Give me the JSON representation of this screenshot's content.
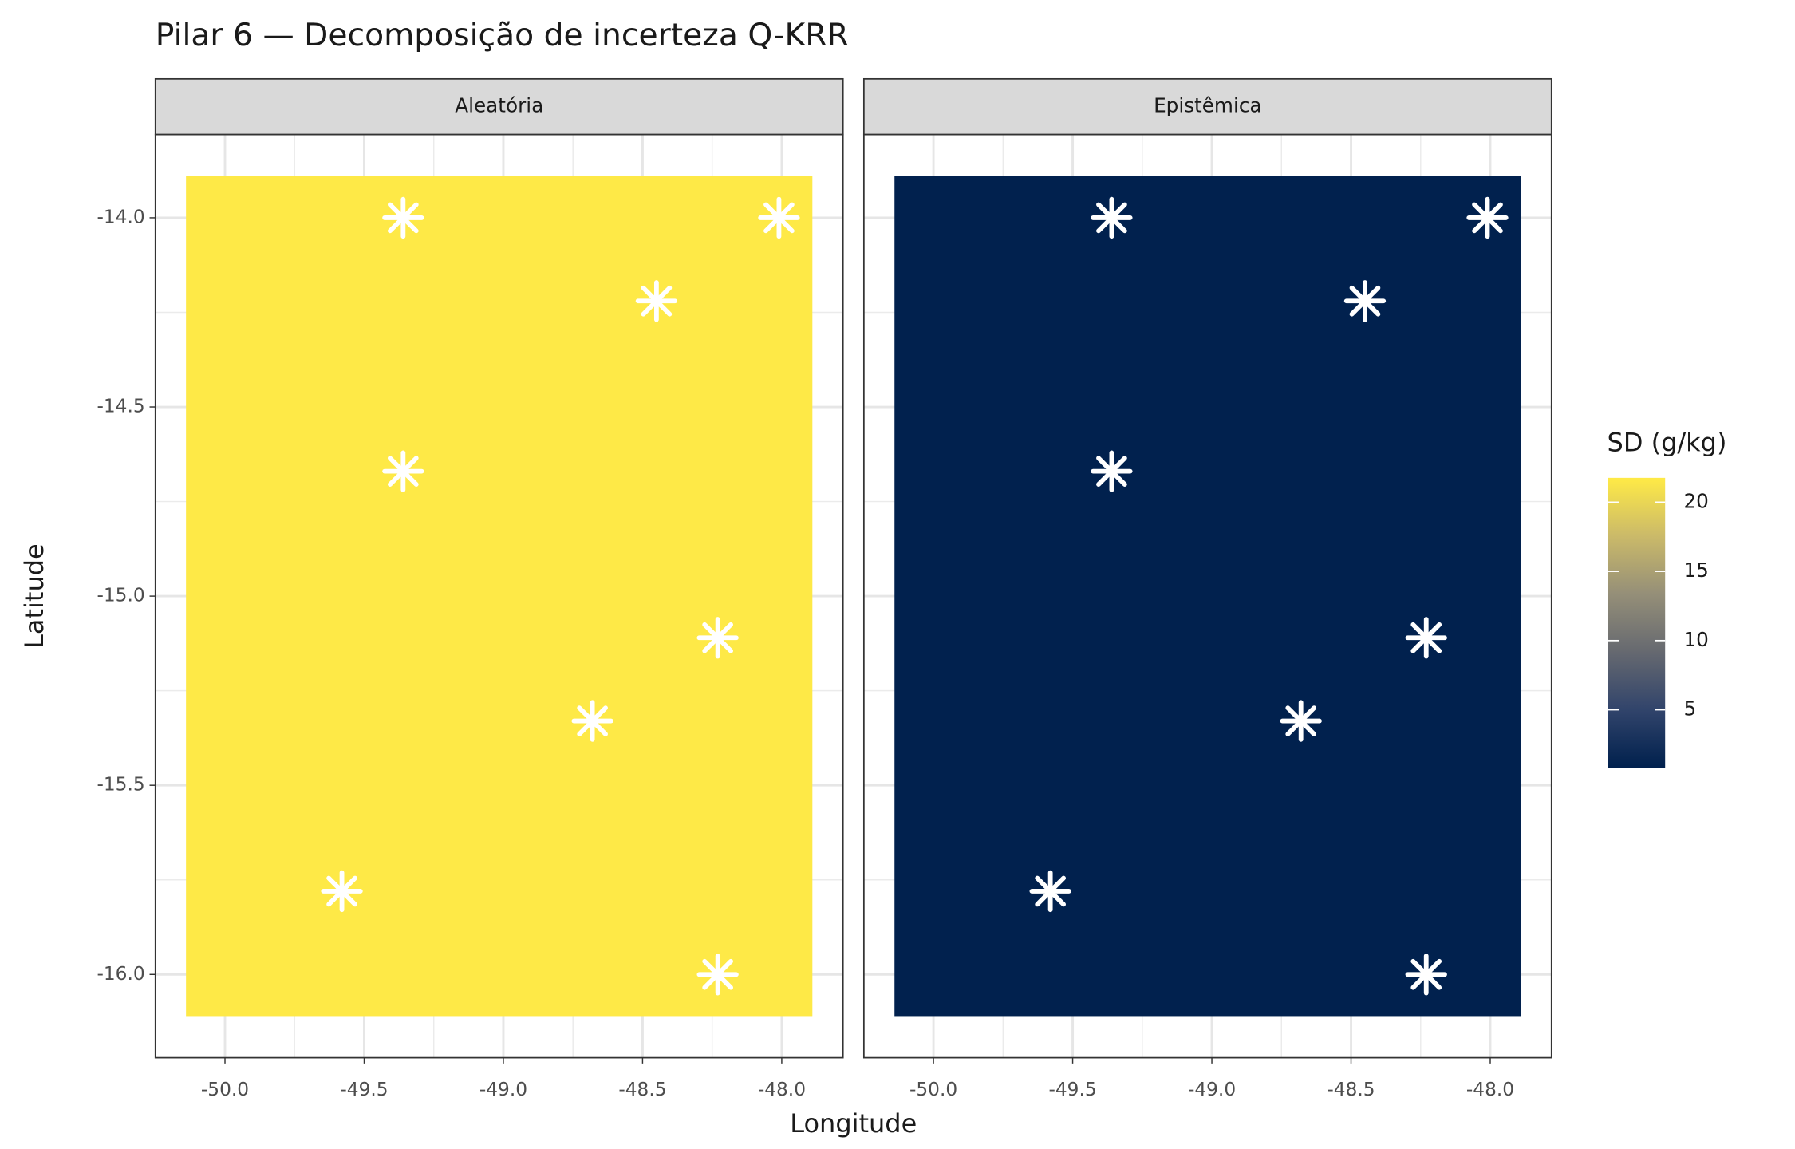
{
  "chart_data": {
    "type": "raster",
    "title": "Pilar 6 — Decomposição de incerteza Q-KRR",
    "xlabel": "Longitude",
    "ylabel": "Latitude",
    "xlim": [
      -50.25,
      -47.78
    ],
    "ylim": [
      -16.22,
      -13.78
    ],
    "xticks": [
      {
        "value": -50,
        "label": "-50.0"
      },
      {
        "value": -49.5,
        "label": "-49.5"
      },
      {
        "value": -49,
        "label": "-49.0"
      },
      {
        "value": -48.5,
        "label": "-48.5"
      },
      {
        "value": -48,
        "label": "-48.0"
      }
    ],
    "yticks": [
      {
        "value": -16,
        "label": "-16.0"
      },
      {
        "value": -15.5,
        "label": "-15.5"
      },
      {
        "value": -15,
        "label": "-15.0"
      },
      {
        "value": -14.5,
        "label": "-14.5"
      },
      {
        "value": -14,
        "label": "-14.0"
      }
    ],
    "grid": true,
    "raster_x": [
      -50.14,
      -47.89
    ],
    "raster_y": [
      -16.11,
      -13.89
    ],
    "panels": [
      {
        "name": "Aleatória",
        "value": 21.7
      },
      {
        "name": "Epistêmica",
        "value": 0.9
      }
    ],
    "points": {
      "x": [
        -49.36,
        -48.01,
        -48.45,
        -49.36,
        -48.23,
        -48.68,
        -49.58,
        -48.23
      ],
      "y": [
        -14.0,
        -14.0,
        -14.22,
        -14.67,
        -15.11,
        -15.33,
        -15.78,
        -16.0
      ],
      "color": "#ffffff"
    },
    "colorbar": {
      "title": "SD (g/kg)",
      "lim": [
        0.81,
        21.76
      ],
      "ticks": [
        5,
        10,
        15,
        20
      ],
      "colors": [
        "#00204d",
        "#31446b",
        "#666970",
        "#958f78",
        "#cbba69",
        "#ffea46"
      ]
    }
  }
}
